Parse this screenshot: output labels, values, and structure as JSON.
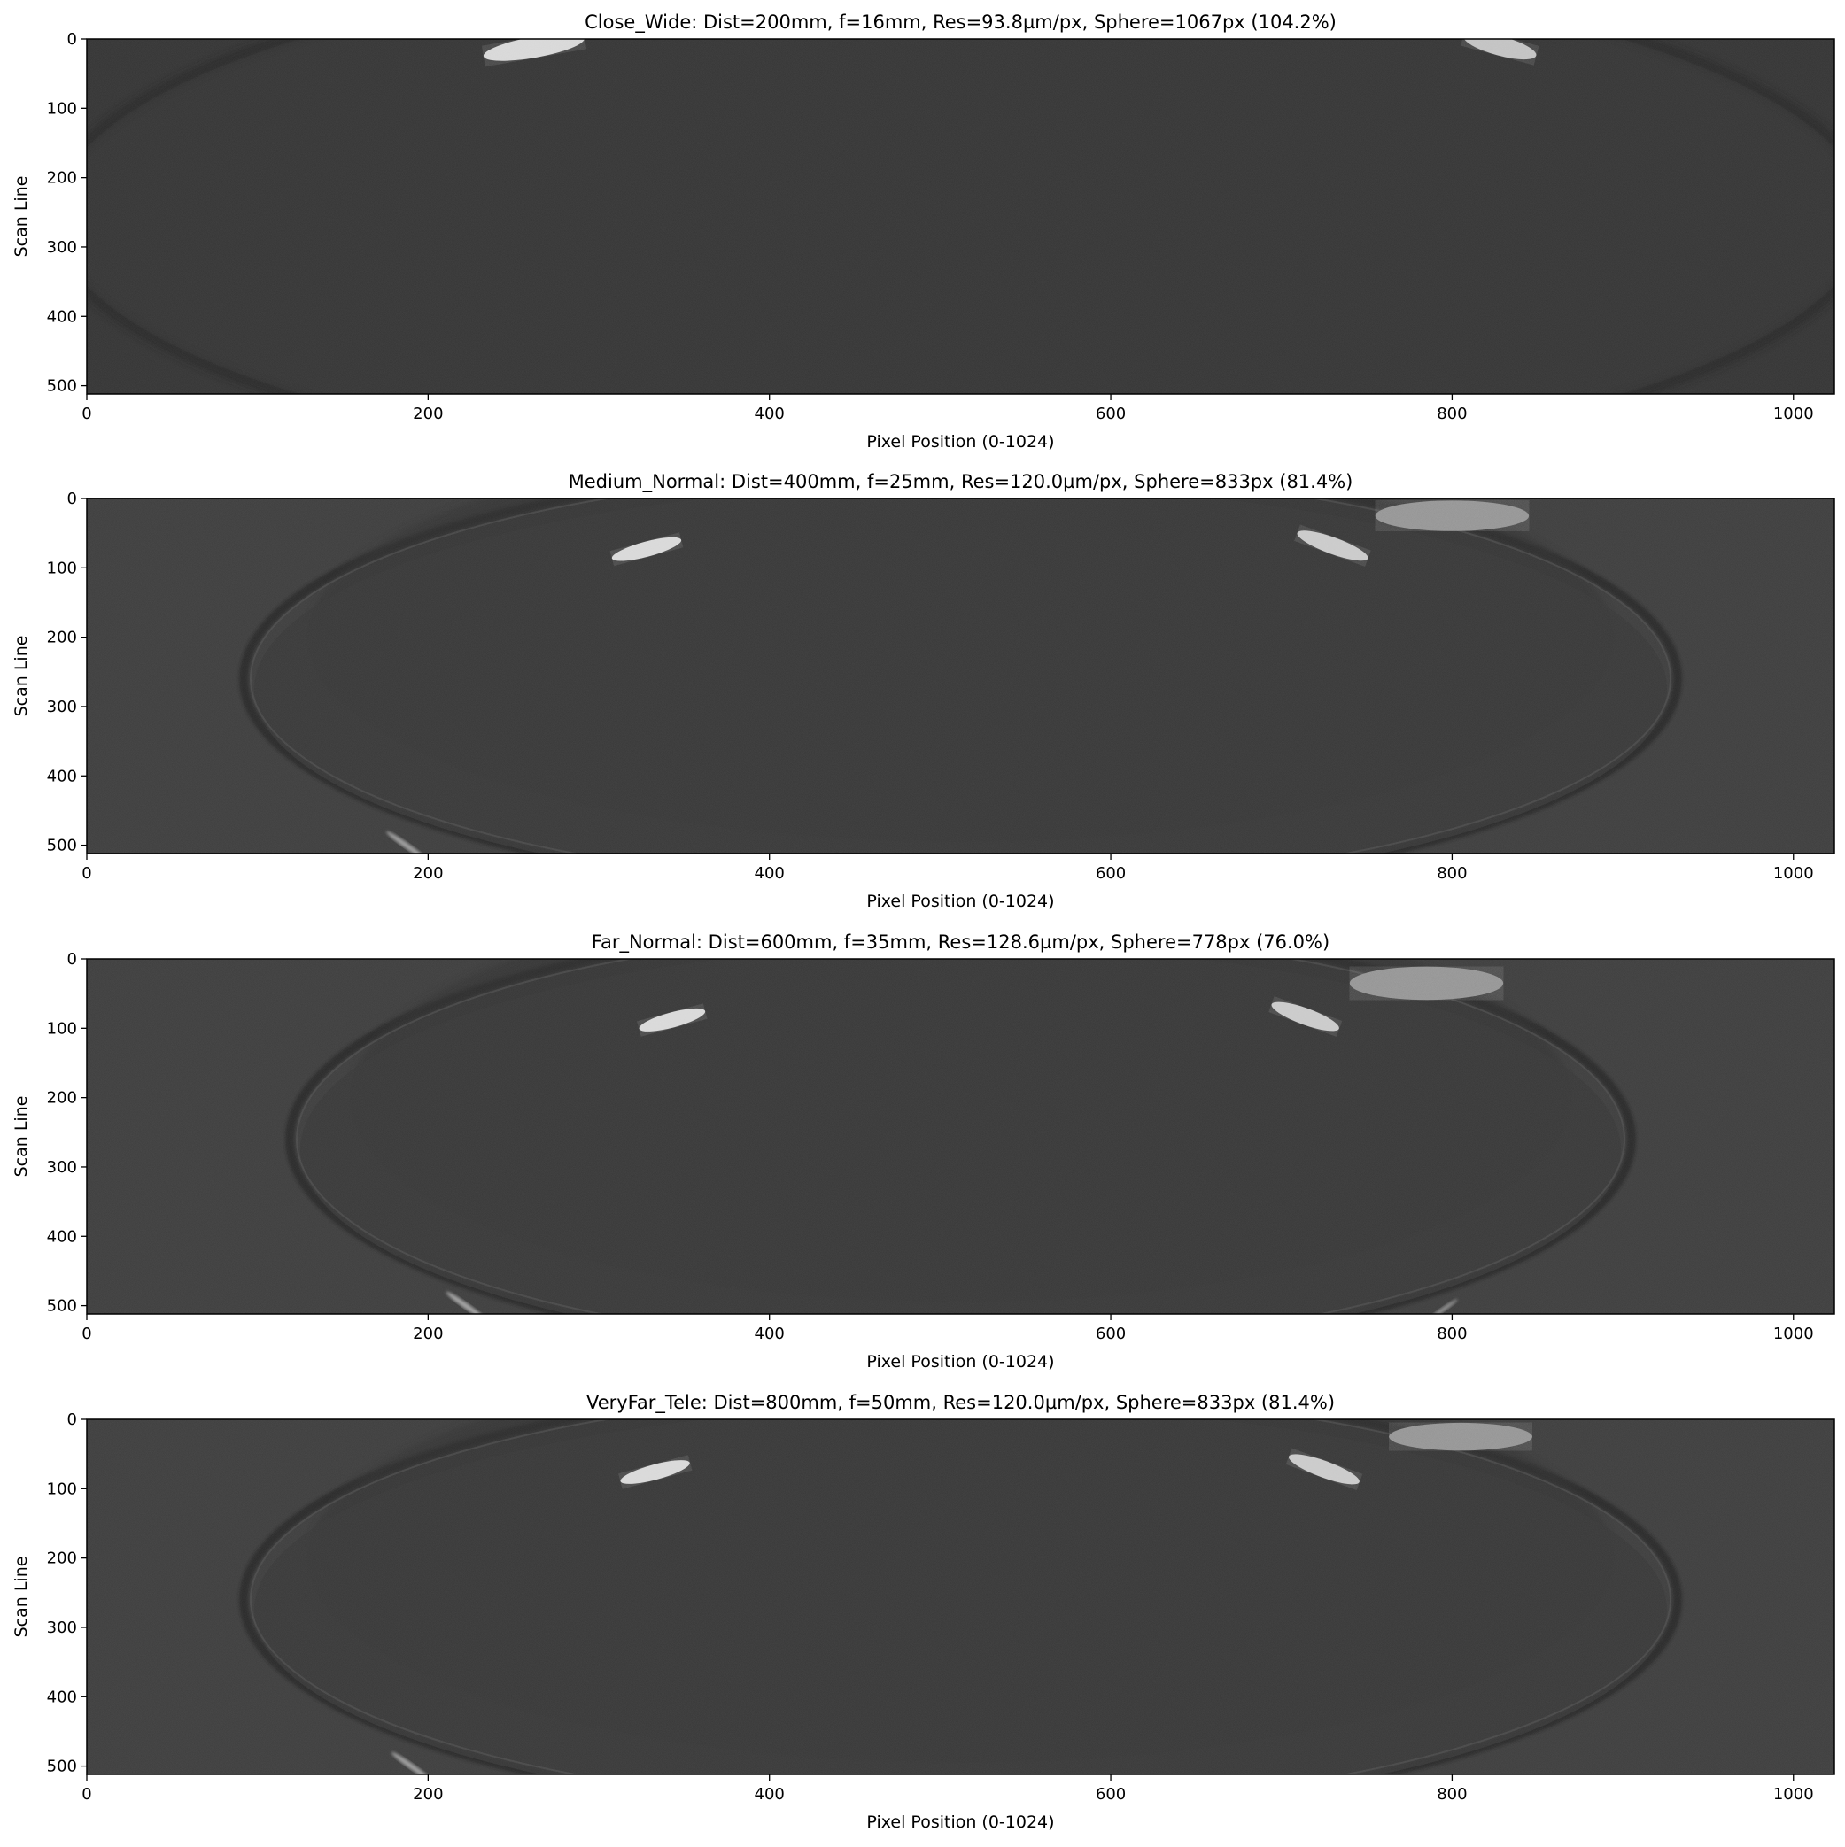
{
  "chart_data": [
    {
      "type": "heatmap",
      "title": "Close_Wide: Dist=200mm, f=16mm, Res=93.8µm/px, Sphere=1067px (104.2%)",
      "xlabel": "Pixel Position (0-1024)",
      "ylabel": "Scan Line",
      "xlim": [
        0,
        1024
      ],
      "ylim": [
        512,
        0
      ],
      "xticks": [
        0,
        200,
        400,
        600,
        800,
        1000
      ],
      "yticks": [
        0,
        100,
        200,
        300,
        400,
        500
      ],
      "colormap": "gray",
      "background_level": "#2e2e2e",
      "sphere": {
        "center_x": 512,
        "center_y": 256,
        "radius_x": 533,
        "radius_y": 380,
        "cut_y": 0
      },
      "highlights": [
        {
          "cx": 262,
          "cy": 12,
          "rx": 30,
          "ry": 15,
          "angle": -10,
          "level": "#d8d8d8"
        },
        {
          "cx": 828,
          "cy": 10,
          "rx": 22,
          "ry": 14,
          "angle": 15,
          "level": "#bfbfbf"
        }
      ],
      "rim_glints": []
    },
    {
      "type": "heatmap",
      "title": "Medium_Normal: Dist=400mm, f=25mm, Res=120.0µm/px, Sphere=833px (81.4%)",
      "xlabel": "Pixel Position (0-1024)",
      "ylabel": "Scan Line",
      "xlim": [
        0,
        1024
      ],
      "ylim": [
        512,
        0
      ],
      "xticks": [
        0,
        200,
        400,
        600,
        800,
        1000
      ],
      "yticks": [
        0,
        100,
        200,
        300,
        400,
        500
      ],
      "colormap": "gray",
      "background_level": "#383838",
      "sphere": {
        "center_x": 512,
        "center_y": 260,
        "radius_x": 416,
        "radius_y": 300,
        "cut_y": 0
      },
      "highlights": [
        {
          "cx": 328,
          "cy": 73,
          "rx": 21,
          "ry": 11,
          "angle": -15,
          "level": "#d9d9d9"
        },
        {
          "cx": 730,
          "cy": 68,
          "rx": 22,
          "ry": 12,
          "angle": 20,
          "level": "#c8c8c8"
        },
        {
          "cx": 800,
          "cy": 25,
          "rx": 45,
          "ry": 22,
          "angle": 0,
          "level": "#8a8a8a"
        }
      ],
      "rim_glints": [
        {
          "cx": 187,
          "cy": 500,
          "rx": 14,
          "ry": 4,
          "angle": 35,
          "level": "#9a9a9a"
        }
      ]
    },
    {
      "type": "heatmap",
      "title": "Far_Normal: Dist=600mm, f=35mm, Res=128.6µm/px, Sphere=778px (76.0%)",
      "xlabel": "Pixel Position (0-1024)",
      "ylabel": "Scan Line",
      "xlim": [
        0,
        1024
      ],
      "ylim": [
        512,
        0
      ],
      "xticks": [
        0,
        200,
        400,
        600,
        800,
        1000
      ],
      "yticks": [
        0,
        100,
        200,
        300,
        400,
        500
      ],
      "colormap": "gray",
      "background_level": "#383838",
      "sphere": {
        "center_x": 512,
        "center_y": 260,
        "radius_x": 389,
        "radius_y": 300,
        "cut_y": 0
      },
      "highlights": [
        {
          "cx": 343,
          "cy": 88,
          "rx": 20,
          "ry": 11,
          "angle": -15,
          "level": "#d9d9d9"
        },
        {
          "cx": 714,
          "cy": 83,
          "rx": 21,
          "ry": 12,
          "angle": 20,
          "level": "#c8c8c8"
        },
        {
          "cx": 785,
          "cy": 35,
          "rx": 45,
          "ry": 24,
          "angle": 0,
          "level": "#8a8a8a"
        }
      ],
      "rim_glints": [
        {
          "cx": 222,
          "cy": 500,
          "rx": 14,
          "ry": 4,
          "angle": 35,
          "level": "#a0a0a0"
        },
        {
          "cx": 795,
          "cy": 505,
          "rx": 10,
          "ry": 3,
          "angle": -35,
          "level": "#8a8a8a"
        }
      ]
    },
    {
      "type": "heatmap",
      "title": "VeryFar_Tele: Dist=800mm, f=50mm, Res=120.0µm/px, Sphere=833px (81.4%)",
      "xlabel": "Pixel Position (0-1024)",
      "ylabel": "Scan Line",
      "xlim": [
        0,
        1024
      ],
      "ylim": [
        512,
        0
      ],
      "xticks": [
        0,
        200,
        400,
        600,
        800,
        1000
      ],
      "yticks": [
        0,
        100,
        200,
        300,
        400,
        500
      ],
      "colormap": "gray",
      "background_level": "#383838",
      "sphere": {
        "center_x": 512,
        "center_y": 260,
        "radius_x": 416,
        "radius_y": 300,
        "cut_y": 0
      },
      "highlights": [
        {
          "cx": 333,
          "cy": 76,
          "rx": 21,
          "ry": 11,
          "angle": -15,
          "level": "#d9d9d9"
        },
        {
          "cx": 725,
          "cy": 72,
          "rx": 22,
          "ry": 12,
          "angle": 20,
          "level": "#c8c8c8"
        },
        {
          "cx": 805,
          "cy": 25,
          "rx": 42,
          "ry": 20,
          "angle": 0,
          "level": "#8a8a8a"
        }
      ],
      "rim_glints": [
        {
          "cx": 190,
          "cy": 500,
          "rx": 14,
          "ry": 4,
          "angle": 35,
          "level": "#9a9a9a"
        }
      ]
    }
  ]
}
